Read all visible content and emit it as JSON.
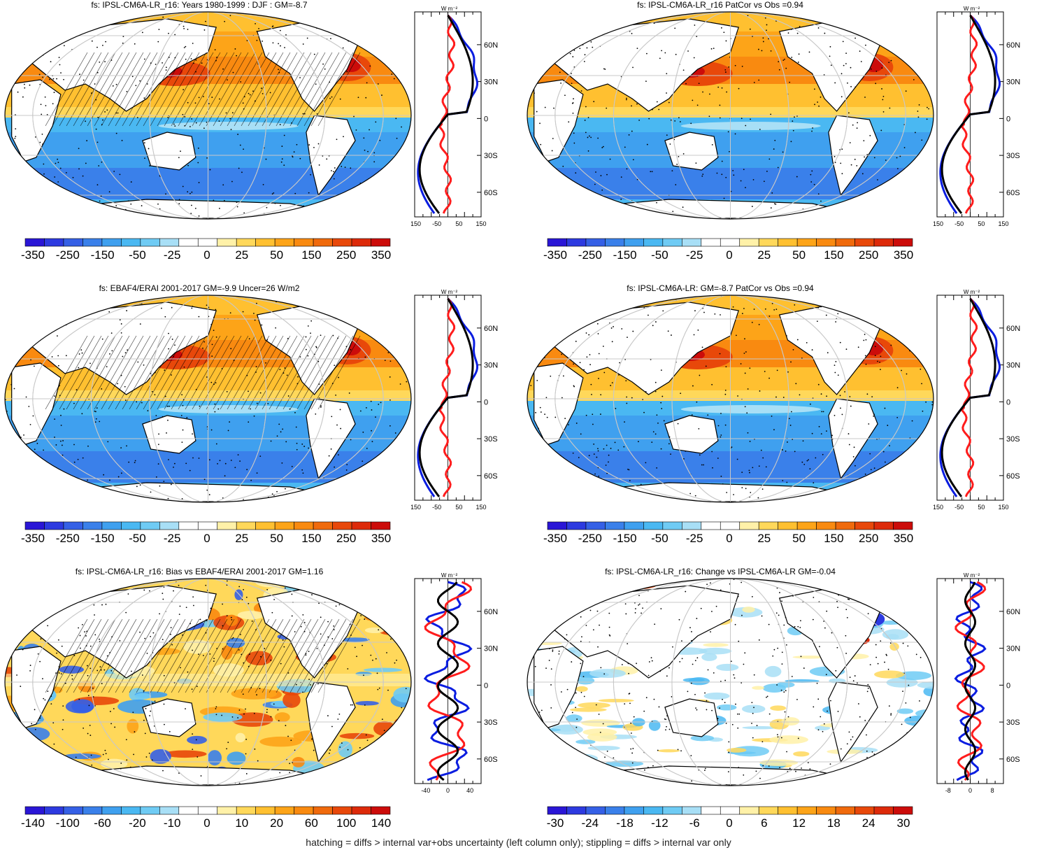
{
  "panels": [
    {
      "title": "fs: IPSL-CM6A-LR_r16: Years 1980-1999 : DJF : GM=-8.7",
      "field": "mean",
      "hatching": true,
      "cbar_labels": [
        "-350",
        "-250",
        "-150",
        "-50",
        "-25",
        "0",
        "25",
        "50",
        "150",
        "250",
        "350"
      ],
      "zonal_ticks": [
        "-150",
        "-50",
        "50",
        "150"
      ],
      "zonal_unit": "W m⁻²"
    },
    {
      "title": "fs: IPSL-CM6A-LR_r16 PatCor vs Obs =0.94",
      "field": "mean",
      "hatching": false,
      "cbar_labels": [
        "-350",
        "-250",
        "-150",
        "-50",
        "-25",
        "0",
        "25",
        "50",
        "150",
        "250",
        "350"
      ],
      "zonal_ticks": [
        "-150",
        "-50",
        "50",
        "150"
      ],
      "zonal_unit": "W m⁻²"
    },
    {
      "title": "fs: EBAF4/ERAI 2001-2017 GM=-9.9 Uncer=26 W/m2",
      "field": "mean",
      "hatching": true,
      "cbar_labels": [
        "-350",
        "-250",
        "-150",
        "-50",
        "-25",
        "0",
        "25",
        "50",
        "150",
        "250",
        "350"
      ],
      "zonal_ticks": [
        "-150",
        "-50",
        "50",
        "150"
      ],
      "zonal_unit": "W m⁻²"
    },
    {
      "title": "fs: IPSL-CM6A-LR: GM=-8.7 PatCor vs Obs =0.94",
      "field": "mean",
      "hatching": false,
      "cbar_labels": [
        "-350",
        "-250",
        "-150",
        "-50",
        "-25",
        "0",
        "25",
        "50",
        "150",
        "250",
        "350"
      ],
      "zonal_ticks": [
        "-150",
        "-50",
        "50",
        "150"
      ],
      "zonal_unit": "W m⁻²"
    },
    {
      "title": "fs: IPSL-CM6A-LR_r16: Bias vs EBAF4/ERAI 2001-2017 GM=1.16",
      "field": "bias",
      "hatching": true,
      "cbar_labels": [
        "-140",
        "-100",
        "-60",
        "-20",
        "-10",
        "0",
        "10",
        "20",
        "60",
        "100",
        "140"
      ],
      "zonal_ticks": [
        "-40",
        "0",
        "40"
      ],
      "zonal_unit": "W m⁻²"
    },
    {
      "title": "fs: IPSL-CM6A-LR_r16: Change vs IPSL-CM6A-LR GM=-0.04",
      "field": "change",
      "hatching": false,
      "cbar_labels": [
        "-30",
        "-24",
        "-18",
        "-12",
        "-6",
        "0",
        "6",
        "12",
        "18",
        "24",
        "30"
      ],
      "zonal_ticks": [
        "-8",
        "0",
        "8"
      ],
      "zonal_unit": "W m⁻²"
    }
  ],
  "lat_labels": [
    "60N",
    "30N",
    "0",
    "30S",
    "60S"
  ],
  "colorbar_colors": [
    "#2a16d6",
    "#2d3ae0",
    "#3560e6",
    "#3a80ea",
    "#3fa0ef",
    "#4ab8f2",
    "#6fcbf4",
    "#a8dff6",
    "#ffffff",
    "#ffffff",
    "#fff1a8",
    "#ffd85a",
    "#ffc030",
    "#fda418",
    "#f98a10",
    "#f06a0c",
    "#e8480a",
    "#dd2a0a",
    "#cc0c0a"
  ],
  "line_colors": {
    "model": "#ff1c1c",
    "obs": "#0a1de0",
    "total": "#000000"
  },
  "footnote": "hatching = diffs > internal var+obs uncertainty (left column only); stippling = diffs > internal var only"
}
